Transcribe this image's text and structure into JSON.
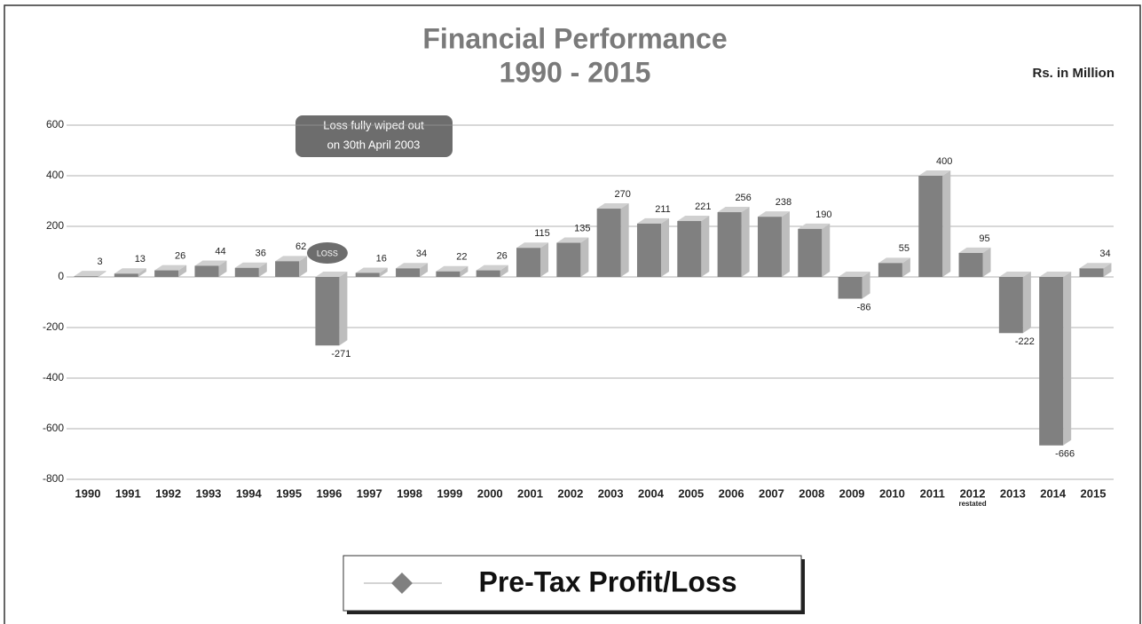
{
  "chart_data": {
    "type": "bar3d",
    "title": [
      "Financial Performance",
      "1990 - 2015"
    ],
    "unit_label": "Rs. in Million",
    "categories": [
      "1990",
      "1991",
      "1992",
      "1993",
      "1994",
      "1995",
      "1996",
      "1997",
      "1998",
      "1999",
      "2000",
      "2001",
      "2002",
      "2003",
      "2004",
      "2005",
      "2006",
      "2007",
      "2008",
      "2009",
      "2010",
      "2011",
      "2012",
      "2013",
      "2014",
      "2015"
    ],
    "series": [
      {
        "name": "Pre-Tax Profit/Loss",
        "color": "#808080",
        "values": [
          3,
          13,
          26,
          44,
          36,
          62,
          -271,
          16,
          34,
          22,
          26,
          115,
          135,
          270,
          211,
          221,
          256,
          238,
          190,
          -86,
          55,
          400,
          95,
          -222,
          -666,
          34
        ]
      }
    ],
    "ylim": [
      -800,
      600
    ],
    "yticks": [
      -800,
      -600,
      -400,
      -200,
      0,
      200,
      400,
      600
    ],
    "grid": true,
    "notes": [
      {
        "category": "2012",
        "text": "restated"
      },
      {
        "category": "1996",
        "text": "LOSS"
      }
    ],
    "annotation": [
      "Loss fully wiped out",
      "on 30th April 2003"
    ]
  }
}
